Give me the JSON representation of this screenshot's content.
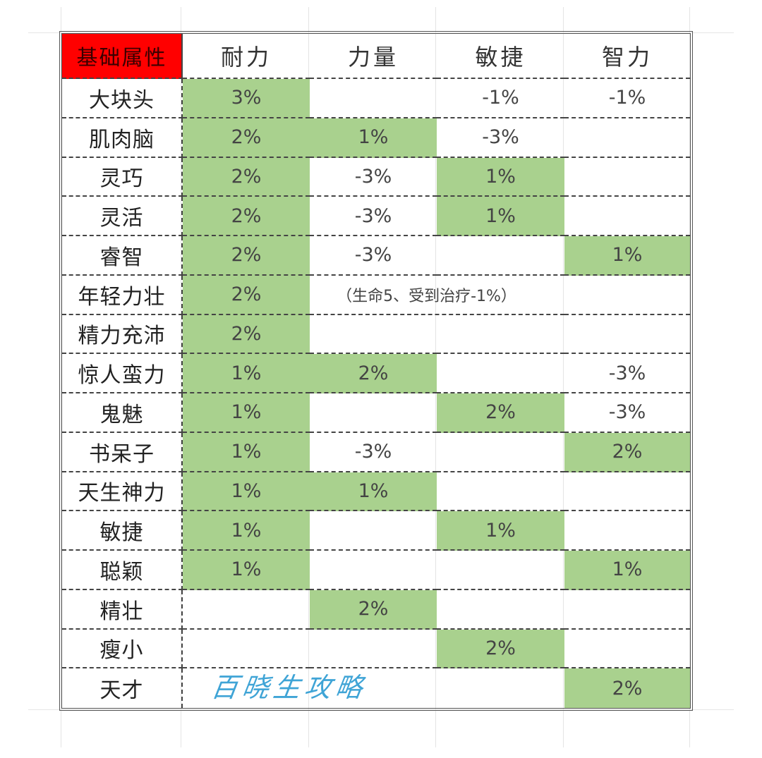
{
  "table": {
    "corner_label": "基础属性",
    "columns": [
      "耐力",
      "力量",
      "敏捷",
      "智力"
    ],
    "rows": [
      {
        "name": "大块头",
        "cells": [
          {
            "v": "3%",
            "g": true
          },
          {
            "v": "",
            "g": false
          },
          {
            "v": "-1%",
            "g": false
          },
          {
            "v": "-1%",
            "g": false
          }
        ]
      },
      {
        "name": "肌肉脑",
        "cells": [
          {
            "v": "2%",
            "g": true
          },
          {
            "v": "1%",
            "g": true
          },
          {
            "v": "-3%",
            "g": false
          },
          {
            "v": "",
            "g": false
          }
        ]
      },
      {
        "name": "灵巧",
        "cells": [
          {
            "v": "2%",
            "g": true
          },
          {
            "v": "-3%",
            "g": false
          },
          {
            "v": "1%",
            "g": true
          },
          {
            "v": "",
            "g": false
          }
        ]
      },
      {
        "name": "灵活",
        "cells": [
          {
            "v": "2%",
            "g": true
          },
          {
            "v": "-3%",
            "g": false
          },
          {
            "v": "1%",
            "g": true
          },
          {
            "v": "",
            "g": false
          }
        ]
      },
      {
        "name": "睿智",
        "cells": [
          {
            "v": "2%",
            "g": true
          },
          {
            "v": "-3%",
            "g": false
          },
          {
            "v": "",
            "g": false
          },
          {
            "v": "1%",
            "g": true
          }
        ]
      },
      {
        "name": "年轻力壮",
        "note": "（生命5、受到治疗-1%）",
        "cells": [
          {
            "v": "2%",
            "g": true
          }
        ]
      },
      {
        "name": "精力充沛",
        "cells": [
          {
            "v": "2%",
            "g": true
          },
          {
            "v": "",
            "g": false
          },
          {
            "v": "",
            "g": false
          },
          {
            "v": "",
            "g": false
          }
        ]
      },
      {
        "name": "惊人蛮力",
        "cells": [
          {
            "v": "1%",
            "g": true
          },
          {
            "v": "2%",
            "g": true
          },
          {
            "v": "",
            "g": false
          },
          {
            "v": "-3%",
            "g": false
          }
        ]
      },
      {
        "name": "鬼魅",
        "cells": [
          {
            "v": "1%",
            "g": true
          },
          {
            "v": "",
            "g": false
          },
          {
            "v": "2%",
            "g": true
          },
          {
            "v": "-3%",
            "g": false
          }
        ]
      },
      {
        "name": "书呆子",
        "cells": [
          {
            "v": "1%",
            "g": true
          },
          {
            "v": "-3%",
            "g": false
          },
          {
            "v": "",
            "g": false
          },
          {
            "v": "2%",
            "g": true
          }
        ]
      },
      {
        "name": "天生神力",
        "cells": [
          {
            "v": "1%",
            "g": true
          },
          {
            "v": "1%",
            "g": true
          },
          {
            "v": "",
            "g": false
          },
          {
            "v": "",
            "g": false
          }
        ]
      },
      {
        "name": "敏捷",
        "cells": [
          {
            "v": "1%",
            "g": true
          },
          {
            "v": "",
            "g": false
          },
          {
            "v": "1%",
            "g": true
          },
          {
            "v": "",
            "g": false
          }
        ]
      },
      {
        "name": "聪颖",
        "cells": [
          {
            "v": "1%",
            "g": true
          },
          {
            "v": "",
            "g": false
          },
          {
            "v": "",
            "g": false
          },
          {
            "v": "1%",
            "g": true
          }
        ]
      },
      {
        "name": "精壮",
        "cells": [
          {
            "v": "",
            "g": false
          },
          {
            "v": "2%",
            "g": true
          },
          {
            "v": "",
            "g": false
          },
          {
            "v": "",
            "g": false
          }
        ]
      },
      {
        "name": "瘦小",
        "cells": [
          {
            "v": "",
            "g": false
          },
          {
            "v": "",
            "g": false
          },
          {
            "v": "2%",
            "g": true
          },
          {
            "v": "",
            "g": false
          }
        ]
      },
      {
        "name": "天才",
        "cells": [
          {
            "v": "",
            "g": false
          },
          {
            "v": "",
            "g": false
          },
          {
            "v": "",
            "g": false
          },
          {
            "v": "2%",
            "g": true
          }
        ]
      }
    ]
  },
  "watermark": "百晓生攻略",
  "colors": {
    "corner_bg": "#ff0000",
    "highlight_green": "#a9d18e"
  }
}
